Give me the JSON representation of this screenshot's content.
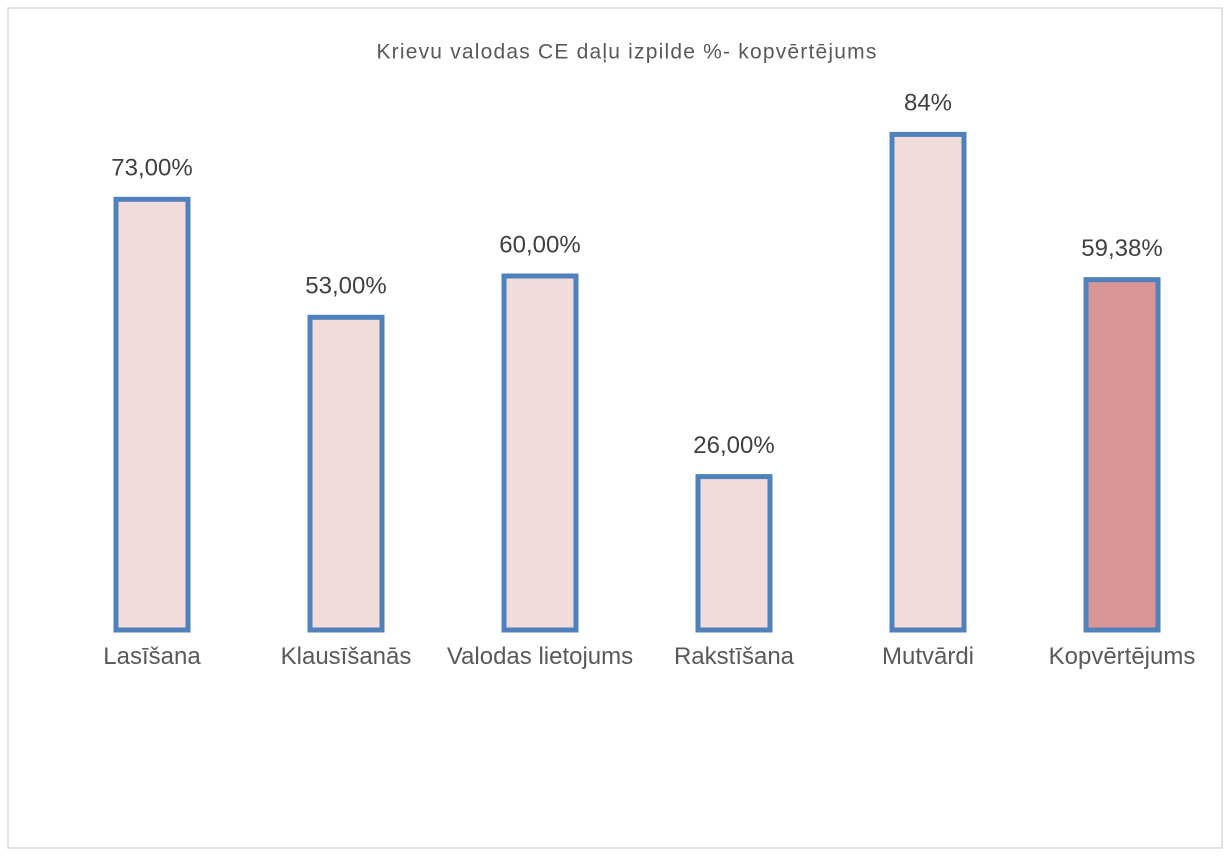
{
  "chart_data": {
    "type": "bar",
    "title": "Krievu valodas CE daļu izpilde %- kopvērtējums",
    "categories": [
      "Lasīšana",
      "Klausīšanās",
      "Valodas lietojums",
      "Rakstīšana",
      "Mutvārdi",
      "Kopvērtējums"
    ],
    "values": [
      73,
      53,
      60,
      26,
      84,
      59.38
    ],
    "value_labels": [
      "73,00%",
      "53,00%",
      "60,00%",
      "26,00%",
      "84%",
      "59,38%"
    ],
    "colors": [
      "#f2dcdb",
      "#f2dcdb",
      "#f2dcdb",
      "#f2dcdb",
      "#f2dcdb",
      "#d99694"
    ],
    "edge_color": "#4f81bd"
  }
}
